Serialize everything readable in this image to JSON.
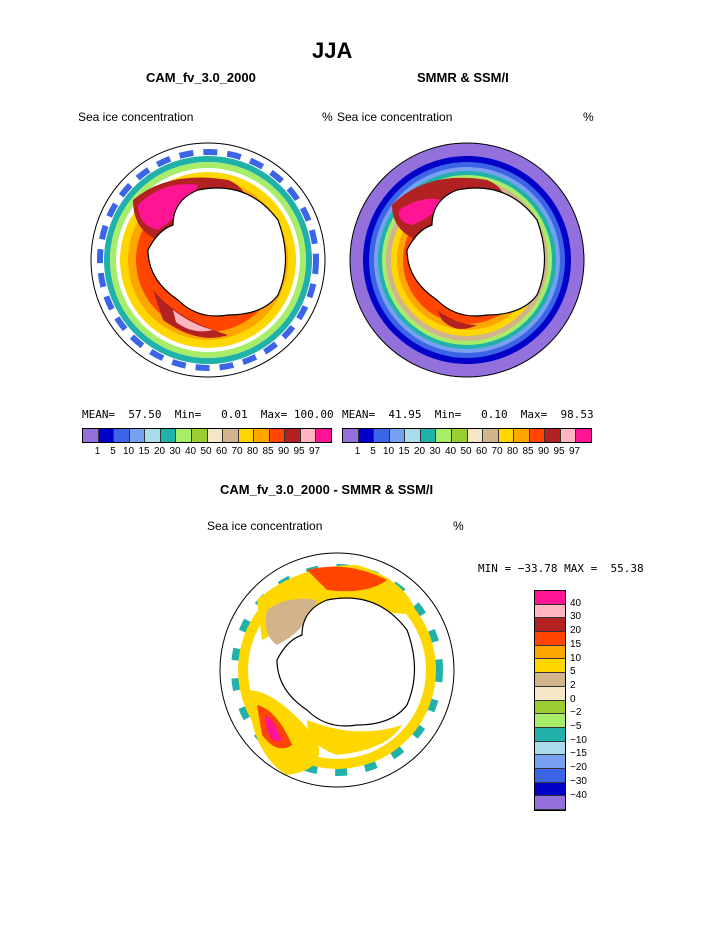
{
  "header": {
    "season": "JJA",
    "left_title": "CAM_fv_3.0_2000",
    "right_title": "SMMR & SSM/I",
    "diff_title": "CAM_fv_3.0_2000 - SMMR & SSM/I"
  },
  "panels": {
    "left": {
      "variable": "Sea ice concentration",
      "units": "%"
    },
    "right": {
      "variable": "Sea ice concentration",
      "units": "%"
    },
    "diff": {
      "variable": "Sea ice concentration",
      "units": "%"
    }
  },
  "stats": {
    "left": "MEAN=  57.50  Min=   0.01  Max= 100.00",
    "right": "MEAN=  41.95  Min=   0.10  Max=  98.53",
    "diff": "MIN = −33.78 MAX =  55.38"
  },
  "chart_data": {
    "type": "map",
    "projection": "south-polar-stereographic",
    "colorbar_levels": [
      "1",
      "5",
      "10",
      "15",
      "20",
      "30",
      "40",
      "50",
      "60",
      "70",
      "80",
      "85",
      "90",
      "95",
      "97"
    ],
    "colorbar_colors": [
      "#9370db",
      "#0000c8",
      "#3c64e6",
      "#78a0f0",
      "#aadcec",
      "#20b2aa",
      "#a8ed6a",
      "#9acd32",
      "#f5e6c8",
      "#d2b48c",
      "#ffd700",
      "#ffa500",
      "#ff4500",
      "#b22222",
      "#ffb6c1",
      "#ff1493"
    ],
    "diff_levels": [
      "40",
      "30",
      "20",
      "15",
      "10",
      "5",
      "2",
      "0",
      "−2",
      "−5",
      "−10",
      "−15",
      "−20",
      "−30",
      "−40"
    ],
    "diff_colors": [
      "#ff1493",
      "#ffb6c1",
      "#b22222",
      "#ff4500",
      "#ffa500",
      "#ffd700",
      "#d2b48c",
      "#f5e6c8",
      "#9acd32",
      "#a8ed6a",
      "#20b2aa",
      "#aadcec",
      "#78a0f0",
      "#3c64e6",
      "#0000c8",
      "#9370db"
    ]
  }
}
